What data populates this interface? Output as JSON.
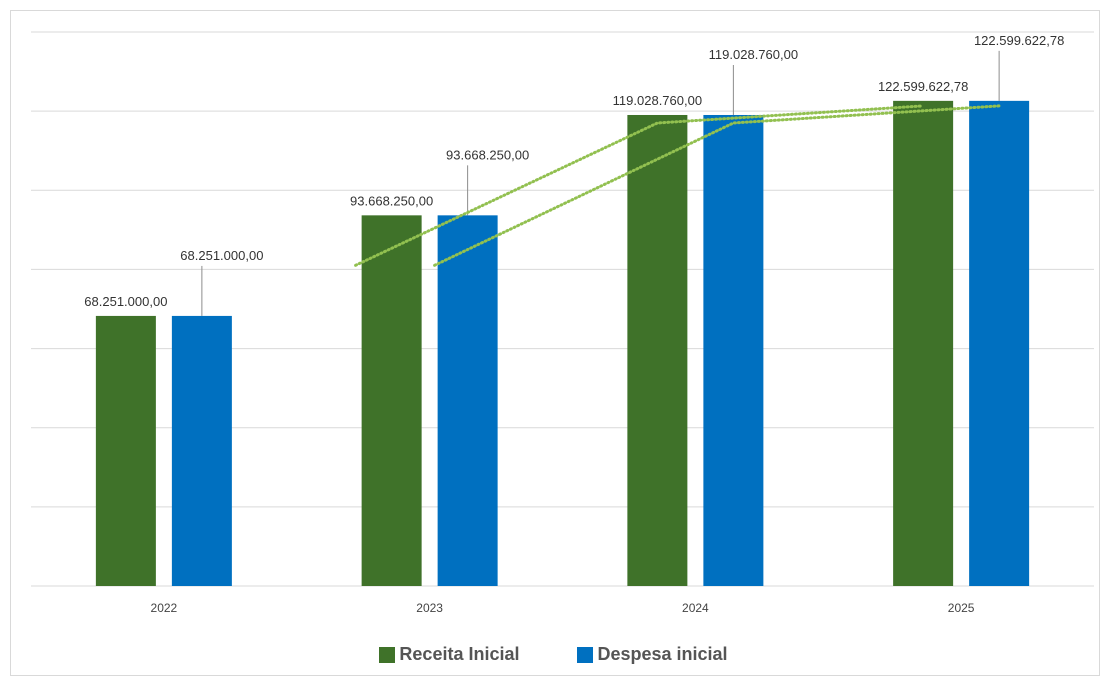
{
  "chart_data": {
    "type": "bar",
    "categories": [
      "2022",
      "2023",
      "2024",
      "2025"
    ],
    "series": [
      {
        "name": "Receita Inicial",
        "color": "#3f7229",
        "values": [
          68251000.0,
          93668250.0,
          119028760.0,
          122599622.78
        ],
        "labels": [
          "68.251.000,00",
          "93.668.250,00",
          "119.028.760,00",
          "122.599.622,78"
        ]
      },
      {
        "name": "Despesa inicial",
        "color": "#0070c0",
        "values": [
          68251000.0,
          93668250.0,
          119028760.0,
          122599622.78
        ],
        "labels": [
          "68.251.000,00",
          "93.668.250,00",
          "119.028.760,00",
          "122.599.622,78"
        ]
      }
    ],
    "trendlines": {
      "style": "dotted",
      "color": "#92c050",
      "series": [
        "Receita Inicial",
        "Despesa inicial"
      ]
    },
    "ylim": [
      0,
      140000000
    ],
    "gridlines": true,
    "legend": "bottom",
    "xlabel": "",
    "ylabel": ""
  }
}
